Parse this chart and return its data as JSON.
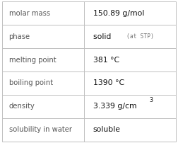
{
  "rows": [
    {
      "label": "molar mass",
      "value": "150.89 g/mol",
      "type": "plain"
    },
    {
      "label": "phase",
      "value": "solid",
      "value_extra": "(at STP)",
      "type": "phase"
    },
    {
      "label": "melting point",
      "value": "381 °C",
      "type": "plain"
    },
    {
      "label": "boiling point",
      "value": "1390 °C",
      "type": "plain"
    },
    {
      "label": "density",
      "value": "3.339 g/cm",
      "superscript": "3",
      "type": "density"
    },
    {
      "label": "solubility in water",
      "value": "soluble",
      "type": "plain"
    }
  ],
  "col_split": 0.472,
  "bg_color": "#ffffff",
  "border_color": "#c0c0c0",
  "label_color": "#555555",
  "value_color": "#111111",
  "extra_color": "#777777",
  "label_font_size": 7.2,
  "value_font_size": 7.8,
  "extra_font_size": 5.8,
  "figsize": [
    2.52,
    2.02
  ],
  "dpi": 100
}
